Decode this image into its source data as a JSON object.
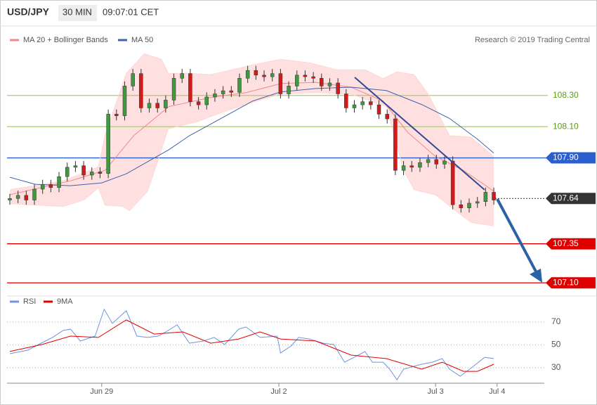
{
  "header": {
    "symbol": "USD/JPY",
    "interval": "30 MIN",
    "time": "09:07:01 CET"
  },
  "credit": "Research © 2019 Trading Central",
  "chart_data": [
    {
      "type": "candlestick",
      "xlim": [
        -0.34,
        65.16
      ],
      "ylim": [
        107.02,
        108.731
      ],
      "up_color": "#3f9a3f",
      "down_color": "#d21a1a",
      "open": [
        107.63,
        107.64,
        107.66,
        107.63,
        107.7,
        107.73,
        107.71,
        107.78,
        107.84,
        107.85,
        107.79,
        107.81,
        107.8,
        108.18,
        108.17,
        108.36,
        108.44,
        108.22,
        108.25,
        108.22,
        108.27,
        108.41,
        108.44,
        108.26,
        108.24,
        108.29,
        108.31,
        108.33,
        108.32,
        108.41,
        108.46,
        108.43,
        108.42,
        108.44,
        108.31,
        108.36,
        108.43,
        108.42,
        108.41,
        108.36,
        108.38,
        108.31,
        108.22,
        108.24,
        108.26,
        108.24,
        108.18,
        108.15,
        107.82,
        107.85,
        107.84,
        107.87,
        107.89,
        107.86,
        107.88,
        107.6,
        107.58,
        107.61,
        107.62,
        107.68
      ],
      "high": [
        107.67,
        107.69,
        107.69,
        107.73,
        107.76,
        107.76,
        107.81,
        107.87,
        107.88,
        107.88,
        107.84,
        107.84,
        108.21,
        108.21,
        108.39,
        108.47,
        108.47,
        108.28,
        108.28,
        108.3,
        108.44,
        108.47,
        108.47,
        108.29,
        108.32,
        108.34,
        108.36,
        108.36,
        108.44,
        108.49,
        108.49,
        108.46,
        108.47,
        108.47,
        108.39,
        108.46,
        108.46,
        108.45,
        108.44,
        108.41,
        108.41,
        108.34,
        108.27,
        108.29,
        108.29,
        108.27,
        108.21,
        108.18,
        107.88,
        107.88,
        107.9,
        107.92,
        107.92,
        107.91,
        107.91,
        107.63,
        107.64,
        107.65,
        107.71,
        107.71
      ],
      "low": [
        107.6,
        107.61,
        107.6,
        107.6,
        107.67,
        107.68,
        107.68,
        107.75,
        107.81,
        107.76,
        107.76,
        107.77,
        107.77,
        108.14,
        108.14,
        108.33,
        108.19,
        108.19,
        108.19,
        108.19,
        108.24,
        108.38,
        108.23,
        108.21,
        108.21,
        108.26,
        108.28,
        108.29,
        108.29,
        108.38,
        108.4,
        108.39,
        108.39,
        108.28,
        108.28,
        108.33,
        108.39,
        108.38,
        108.33,
        108.33,
        108.28,
        108.19,
        108.19,
        108.21,
        108.21,
        108.15,
        108.12,
        107.79,
        107.79,
        107.81,
        107.81,
        107.84,
        107.83,
        107.83,
        107.57,
        107.55,
        107.55,
        107.58,
        107.59,
        107.6
      ],
      "close": [
        107.64,
        107.66,
        107.63,
        107.7,
        107.73,
        107.71,
        107.78,
        107.84,
        107.85,
        107.79,
        107.81,
        107.8,
        108.18,
        108.17,
        108.36,
        108.44,
        108.22,
        108.25,
        108.22,
        108.27,
        108.41,
        108.44,
        108.26,
        108.24,
        108.29,
        108.31,
        108.33,
        108.32,
        108.41,
        108.46,
        108.43,
        108.42,
        108.44,
        108.31,
        108.36,
        108.43,
        108.42,
        108.41,
        108.36,
        108.38,
        108.31,
        108.22,
        108.24,
        108.26,
        108.24,
        108.18,
        108.15,
        107.82,
        107.85,
        107.84,
        107.87,
        107.89,
        107.86,
        107.88,
        107.6,
        107.58,
        107.61,
        107.62,
        107.68,
        107.63
      ],
      "overlays": [
        {
          "name": "MA 20 + Bollinger Bands",
          "color": "#f08a8a",
          "band_color": "#ffd6d6",
          "x": [
            0,
            7.4,
            11.6,
            15.1,
            19.4,
            24.5,
            28.8,
            33.1,
            37.3,
            41.6,
            45.5,
            48.5,
            51.9,
            55.3,
            59
          ],
          "values": [
            107.664,
            107.753,
            107.82,
            108.042,
            108.229,
            108.287,
            108.318,
            108.376,
            108.384,
            108.353,
            108.264,
            108.064,
            107.909,
            107.82,
            107.687
          ],
          "upper": {
            "x": [
              0,
              6.5,
              10.8,
              11.6,
              14.2,
              16.4,
              18.5,
              19.3,
              21.9,
              24.5,
              29.6,
              33,
              36.5,
              39.9,
              43.3,
              45.5,
              47.2,
              49.3,
              51,
              53.6,
              56.2,
              59
            ],
            "values": [
              107.696,
              107.753,
              107.842,
              108.042,
              108.442,
              108.567,
              108.531,
              108.442,
              108.442,
              108.433,
              108.496,
              108.531,
              108.509,
              108.464,
              108.464,
              108.407,
              108.451,
              108.433,
              108.309,
              108.042,
              108.033,
              107.909
            ]
          },
          "lower": {
            "x": [
              0,
              3.1,
              6.5,
              9.1,
              10.8,
              11.6,
              13.8,
              14.6,
              16.8,
              18.5,
              19.3,
              22.8,
              26.2,
              29.6,
              33,
              37.3,
              41.6,
              45.9,
              48,
              49.3,
              51.9,
              54,
              56.2,
              59
            ],
            "values": [
              107.607,
              107.598,
              107.589,
              107.633,
              107.709,
              107.598,
              107.589,
              107.562,
              107.687,
              107.953,
              108.087,
              108.131,
              108.198,
              108.256,
              108.309,
              108.318,
              108.309,
              108.229,
              107.82,
              107.696,
              107.664,
              107.576,
              107.487,
              107.464
            ]
          }
        },
        {
          "name": "MA 50",
          "color": "#3f63a8",
          "x": [
            0,
            3.1,
            7.4,
            11.2,
            14.2,
            19.4,
            21.9,
            25.3,
            29.6,
            33,
            37.3,
            41.6,
            45.9,
            50.2,
            53.6,
            57,
            59
          ],
          "values": [
            107.776,
            107.731,
            107.722,
            107.74,
            107.798,
            107.953,
            108.042,
            108.14,
            108.264,
            108.322,
            108.344,
            108.353,
            108.331,
            108.242,
            108.153,
            108.02,
            107.931
          ]
        }
      ],
      "levels": [
        {
          "value": 108.3,
          "label": "108.30",
          "color": "#a9cc6e",
          "text_color": "#5a9a1a",
          "box": false,
          "style": "solid"
        },
        {
          "value": 108.1,
          "label": "108.10",
          "color": "#a9cc6e",
          "text_color": "#5a9a1a",
          "box": false,
          "style": "solid"
        },
        {
          "value": 107.9,
          "label": "107.90",
          "color": "#2a5fd0",
          "text_color": "#ffffff",
          "box": true,
          "style": "solid"
        },
        {
          "value": 107.64,
          "label": "107.64",
          "color": "#333333",
          "text_color": "#ffffff",
          "box": true,
          "style": "dotted"
        },
        {
          "value": 107.35,
          "label": "107.35",
          "color": "#e00000",
          "text_color": "#ffffff",
          "box": true,
          "style": "solid"
        },
        {
          "value": 107.1,
          "label": "107.10",
          "color": "#e00000",
          "text_color": "#ffffff",
          "box": true,
          "style": "solid"
        }
      ]
    },
    {
      "type": "line",
      "xlim": [
        -0.34,
        65.16
      ],
      "ylim": [
        16.5,
        87.2
      ],
      "yticks": [
        30,
        50,
        70
      ],
      "grid": true,
      "xticks": [
        {
          "value": 11.2,
          "label": "Jun 29"
        },
        {
          "value": 32.8,
          "label": "Jul 2"
        },
        {
          "value": 51.9,
          "label": "Jul 3"
        },
        {
          "value": 59.4,
          "label": "Jul 4"
        }
      ],
      "series": [
        {
          "name": "RSI",
          "color": "#6f93de",
          "x": [
            0,
            2.2,
            3.5,
            5.2,
            6.5,
            7.4,
            8.6,
            10.4,
            11.5,
            12.5,
            14.2,
            15.5,
            16.8,
            18.1,
            19.3,
            20.4,
            21.9,
            23.6,
            24.9,
            26.2,
            27.9,
            28.8,
            30.5,
            32.6,
            33,
            34.3,
            35.2,
            36.5,
            38.2,
            39.5,
            40.8,
            42.5,
            43.3,
            44.2,
            45.5,
            46.3,
            47.2,
            48,
            50.2,
            51.5,
            52.7,
            53.6,
            54.9,
            56.6,
            57.9,
            59
          ],
          "values": [
            42.3,
            45.4,
            50.3,
            56.5,
            62.6,
            63.8,
            53.4,
            57.7,
            81.1,
            68.8,
            79.8,
            57.7,
            56.5,
            57.7,
            62.6,
            67.5,
            51.5,
            53.4,
            56.5,
            50.3,
            63.8,
            65.7,
            56.5,
            57.7,
            42.9,
            49.1,
            56.5,
            55.2,
            51.5,
            50.3,
            34.9,
            41.1,
            44.2,
            34.9,
            34.9,
            28.8,
            19.5,
            28.8,
            33.1,
            34.9,
            38,
            28.8,
            22.6,
            31.8,
            39.2,
            38
          ]
        },
        {
          "name": "9MA",
          "color": "#e00000",
          "x": [
            0,
            3.9,
            7.4,
            10.8,
            14.2,
            17.6,
            21.1,
            24.5,
            27.9,
            30.5,
            33,
            37.3,
            41.6,
            45.9,
            50.2,
            52.7,
            55.3,
            57,
            59
          ],
          "values": [
            44.2,
            50.3,
            57.7,
            56.5,
            71.8,
            59.5,
            61.4,
            51.5,
            55.2,
            61.4,
            55.2,
            53.4,
            41.1,
            38,
            28.8,
            34.9,
            26.9,
            26.9,
            33.1
          ]
        }
      ]
    }
  ]
}
